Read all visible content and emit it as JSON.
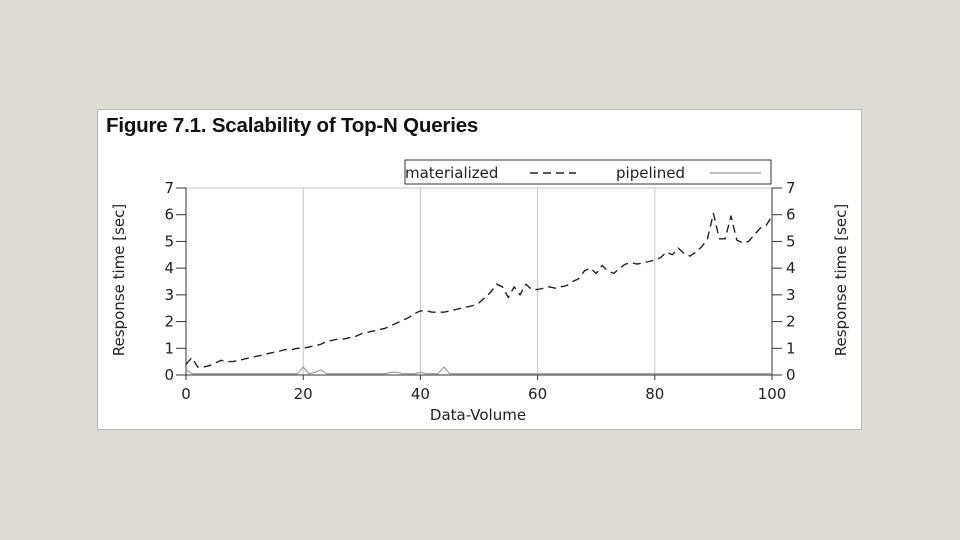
{
  "figure": {
    "title": "Figure 7.1. Scalability of Top-N Queries"
  },
  "chart_data": {
    "type": "line",
    "title": "Figure 7.1. Scalability of Top-N Queries",
    "xlabel": "Data-Volume",
    "ylabel": "Response time [sec]",
    "ylabel_right": "Response time [sec]",
    "xlim": [
      0,
      100
    ],
    "ylim": [
      0,
      7
    ],
    "xticks": [
      0,
      20,
      40,
      60,
      80,
      100
    ],
    "yticks": [
      0,
      1,
      2,
      3,
      4,
      5,
      6,
      7
    ],
    "grid": "vertical",
    "legend_position": "top-right",
    "series": [
      {
        "name": "materialized",
        "style": "dashed",
        "color": "#222222",
        "x": [
          0,
          1,
          2,
          3,
          4,
          5,
          6,
          7,
          8,
          9,
          10,
          11,
          12,
          13,
          14,
          15,
          16,
          17,
          18,
          19,
          20,
          21,
          22,
          23,
          24,
          25,
          26,
          27,
          28,
          29,
          30,
          31,
          32,
          33,
          34,
          35,
          36,
          37,
          38,
          39,
          40,
          41,
          42,
          43,
          44,
          45,
          46,
          47,
          48,
          49,
          50,
          51,
          52,
          53,
          54,
          55,
          56,
          57,
          58,
          59,
          60,
          61,
          62,
          63,
          64,
          65,
          66,
          67,
          68,
          69,
          70,
          71,
          72,
          73,
          74,
          75,
          76,
          77,
          78,
          79,
          80,
          81,
          82,
          83,
          84,
          85,
          86,
          87,
          88,
          89,
          90,
          91,
          92,
          93,
          94,
          95,
          96,
          97,
          98,
          99,
          100
        ],
        "y": [
          0.4,
          0.65,
          0.3,
          0.3,
          0.35,
          0.45,
          0.55,
          0.5,
          0.5,
          0.55,
          0.6,
          0.65,
          0.7,
          0.75,
          0.8,
          0.85,
          0.9,
          0.95,
          0.95,
          1.0,
          1.0,
          1.05,
          1.1,
          1.15,
          1.25,
          1.3,
          1.35,
          1.35,
          1.4,
          1.45,
          1.55,
          1.6,
          1.65,
          1.7,
          1.75,
          1.85,
          1.95,
          2.05,
          2.15,
          2.3,
          2.4,
          2.4,
          2.35,
          2.35,
          2.35,
          2.4,
          2.45,
          2.5,
          2.55,
          2.6,
          2.7,
          2.9,
          3.1,
          3.4,
          3.3,
          2.9,
          3.3,
          3.0,
          3.4,
          3.2,
          3.2,
          3.25,
          3.3,
          3.25,
          3.3,
          3.35,
          3.5,
          3.6,
          3.9,
          4.0,
          3.8,
          4.1,
          3.9,
          3.8,
          4.0,
          4.15,
          4.2,
          4.15,
          4.2,
          4.25,
          4.3,
          4.4,
          4.6,
          4.5,
          4.75,
          4.55,
          4.45,
          4.6,
          4.8,
          5.1,
          6.05,
          5.1,
          5.1,
          5.95,
          5.05,
          4.95,
          5.0,
          5.25,
          5.5,
          5.6,
          5.95
        ]
      },
      {
        "name": "pipelined",
        "style": "solid",
        "color": "#999999",
        "x": [
          0,
          1,
          2,
          3,
          4,
          5,
          6,
          7,
          8,
          9,
          10,
          11,
          12,
          13,
          14,
          15,
          16,
          17,
          18,
          19,
          20,
          21,
          22,
          23,
          24,
          25,
          26,
          27,
          28,
          29,
          30,
          31,
          32,
          33,
          34,
          35,
          36,
          37,
          38,
          39,
          40,
          41,
          42,
          43,
          44,
          45,
          46,
          47,
          48,
          49,
          50,
          51,
          52,
          53,
          54,
          55,
          56,
          57,
          58,
          59,
          60,
          61,
          62,
          63,
          64,
          65,
          66,
          67,
          68,
          69,
          70,
          71,
          72,
          73,
          74,
          75,
          76,
          77,
          78,
          79,
          80,
          81,
          82,
          83,
          84,
          85,
          86,
          87,
          88,
          89,
          90,
          91,
          92,
          93,
          94,
          95,
          96,
          97,
          98,
          99,
          100
        ],
        "y": [
          0.2,
          0.05,
          0.05,
          0.05,
          0.05,
          0.05,
          0.05,
          0.05,
          0.05,
          0.05,
          0.05,
          0.05,
          0.05,
          0.05,
          0.05,
          0.05,
          0.05,
          0.05,
          0.05,
          0.05,
          0.3,
          0.05,
          0.1,
          0.2,
          0.05,
          0.05,
          0.05,
          0.05,
          0.05,
          0.05,
          0.05,
          0.05,
          0.05,
          0.05,
          0.05,
          0.1,
          0.1,
          0.05,
          0.05,
          0.05,
          0.1,
          0.05,
          0.05,
          0.05,
          0.3,
          0.05,
          0.05,
          0.05,
          0.05,
          0.05,
          0.05,
          0.05,
          0.05,
          0.05,
          0.05,
          0.05,
          0.05,
          0.05,
          0.05,
          0.05,
          0.05,
          0.05,
          0.05,
          0.05,
          0.05,
          0.05,
          0.05,
          0.05,
          0.05,
          0.05,
          0.05,
          0.05,
          0.05,
          0.05,
          0.05,
          0.05,
          0.05,
          0.05,
          0.05,
          0.05,
          0.05,
          0.05,
          0.05,
          0.05,
          0.05,
          0.05,
          0.05,
          0.05,
          0.05,
          0.05,
          0.05,
          0.05,
          0.05,
          0.05,
          0.05,
          0.05,
          0.05,
          0.05,
          0.05,
          0.05,
          0.05
        ]
      }
    ]
  }
}
